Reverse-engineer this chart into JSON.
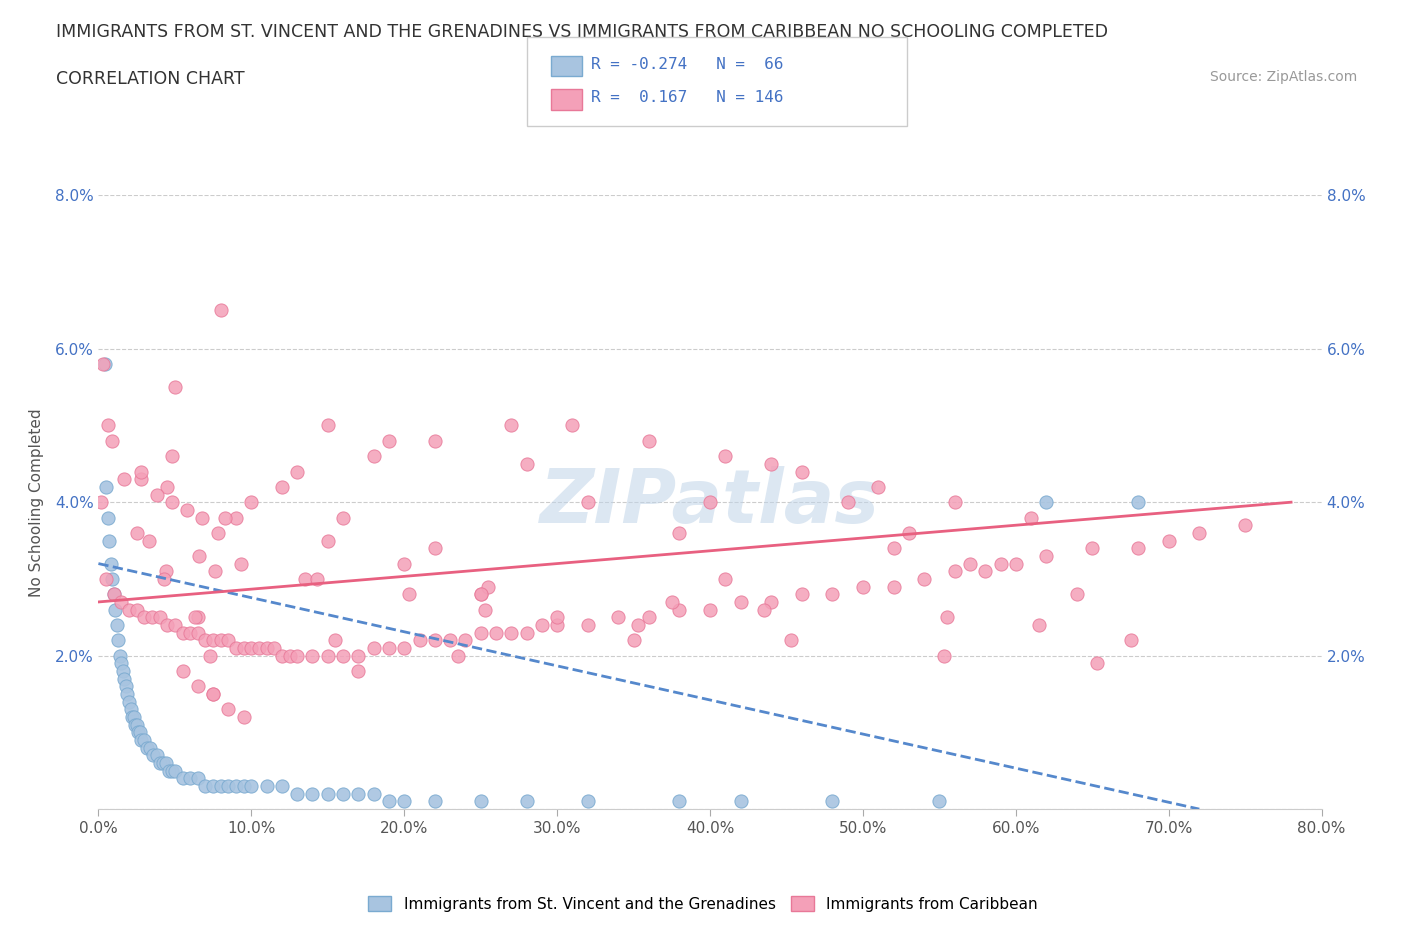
{
  "title_line1": "IMMIGRANTS FROM ST. VINCENT AND THE GRENADINES VS IMMIGRANTS FROM CARIBBEAN NO SCHOOLING COMPLETED",
  "title_line2": "CORRELATION CHART",
  "source_text": "Source: ZipAtlas.com",
  "ylabel": "No Schooling Completed",
  "watermark_text": "ZIPatlas",
  "color_blue": "#a8c4e0",
  "color_pink": "#f4a0b8",
  "edge_blue": "#7aaad0",
  "edge_pink": "#e87898",
  "trendline_blue": "#5588cc",
  "trendline_pink": "#e86080",
  "label_color_blue": "#4472c4",
  "xlim": [
    0.0,
    0.8
  ],
  "ylim": [
    0.0,
    0.08
  ],
  "xticks": [
    0.0,
    0.1,
    0.2,
    0.3,
    0.4,
    0.5,
    0.6,
    0.7,
    0.8
  ],
  "yticks": [
    0.0,
    0.02,
    0.04,
    0.06,
    0.08
  ],
  "xtick_labels": [
    "0.0%",
    "10.0%",
    "20.0%",
    "30.0%",
    "40.0%",
    "50.0%",
    "60.0%",
    "70.0%",
    "80.0%"
  ],
  "ytick_labels": [
    "",
    "2.0%",
    "4.0%",
    "6.0%",
    "8.0%"
  ],
  "blue_x": [
    0.004,
    0.005,
    0.006,
    0.007,
    0.008,
    0.009,
    0.01,
    0.011,
    0.012,
    0.013,
    0.014,
    0.015,
    0.016,
    0.017,
    0.018,
    0.019,
    0.02,
    0.021,
    0.022,
    0.023,
    0.024,
    0.025,
    0.026,
    0.027,
    0.028,
    0.03,
    0.032,
    0.034,
    0.036,
    0.038,
    0.04,
    0.042,
    0.044,
    0.046,
    0.048,
    0.05,
    0.055,
    0.06,
    0.065,
    0.07,
    0.075,
    0.08,
    0.085,
    0.09,
    0.095,
    0.1,
    0.11,
    0.12,
    0.13,
    0.14,
    0.15,
    0.16,
    0.17,
    0.18,
    0.19,
    0.2,
    0.22,
    0.25,
    0.28,
    0.32,
    0.38,
    0.42,
    0.48,
    0.55,
    0.62,
    0.68
  ],
  "blue_y": [
    0.058,
    0.042,
    0.038,
    0.035,
    0.032,
    0.03,
    0.028,
    0.026,
    0.024,
    0.022,
    0.02,
    0.019,
    0.018,
    0.017,
    0.016,
    0.015,
    0.014,
    0.013,
    0.012,
    0.012,
    0.011,
    0.011,
    0.01,
    0.01,
    0.009,
    0.009,
    0.008,
    0.008,
    0.007,
    0.007,
    0.006,
    0.006,
    0.006,
    0.005,
    0.005,
    0.005,
    0.004,
    0.004,
    0.004,
    0.003,
    0.003,
    0.003,
    0.003,
    0.003,
    0.003,
    0.003,
    0.003,
    0.003,
    0.002,
    0.002,
    0.002,
    0.002,
    0.002,
    0.002,
    0.001,
    0.001,
    0.001,
    0.001,
    0.001,
    0.001,
    0.001,
    0.001,
    0.001,
    0.001,
    0.04,
    0.04
  ],
  "pink_x": [
    0.005,
    0.01,
    0.015,
    0.02,
    0.025,
    0.03,
    0.035,
    0.04,
    0.045,
    0.05,
    0.055,
    0.06,
    0.065,
    0.07,
    0.075,
    0.08,
    0.085,
    0.09,
    0.095,
    0.1,
    0.105,
    0.11,
    0.115,
    0.12,
    0.125,
    0.13,
    0.14,
    0.15,
    0.16,
    0.17,
    0.18,
    0.19,
    0.2,
    0.21,
    0.22,
    0.23,
    0.24,
    0.25,
    0.26,
    0.27,
    0.28,
    0.29,
    0.3,
    0.32,
    0.34,
    0.36,
    0.38,
    0.4,
    0.42,
    0.44,
    0.46,
    0.48,
    0.5,
    0.52,
    0.54,
    0.56,
    0.58,
    0.6,
    0.62,
    0.65,
    0.68,
    0.7,
    0.72,
    0.75,
    0.05,
    0.1,
    0.15,
    0.2,
    0.25,
    0.3,
    0.35,
    0.4,
    0.045,
    0.09,
    0.13,
    0.18,
    0.22,
    0.27,
    0.31,
    0.36,
    0.41,
    0.46,
    0.51,
    0.56,
    0.61,
    0.066,
    0.076,
    0.135,
    0.255,
    0.375,
    0.435,
    0.555,
    0.615,
    0.675,
    0.38,
    0.41,
    0.28,
    0.32,
    0.15,
    0.19,
    0.52,
    0.57,
    0.25,
    0.08,
    0.12,
    0.16,
    0.22,
    0.44,
    0.49,
    0.53,
    0.59,
    0.64,
    0.055,
    0.065,
    0.075,
    0.085,
    0.095,
    0.17,
    0.075,
    0.155,
    0.235,
    0.065,
    0.044,
    0.025,
    0.017,
    0.009,
    0.006,
    0.003,
    0.0015,
    0.033,
    0.043,
    0.063,
    0.073,
    0.083,
    0.093,
    0.143,
    0.203,
    0.253,
    0.353,
    0.453,
    0.553,
    0.653,
    0.028,
    0.038,
    0.048,
    0.058,
    0.068,
    0.078,
    0.028,
    0.048
  ],
  "pink_y": [
    0.03,
    0.028,
    0.027,
    0.026,
    0.026,
    0.025,
    0.025,
    0.025,
    0.024,
    0.024,
    0.023,
    0.023,
    0.023,
    0.022,
    0.022,
    0.022,
    0.022,
    0.021,
    0.021,
    0.021,
    0.021,
    0.021,
    0.021,
    0.02,
    0.02,
    0.02,
    0.02,
    0.02,
    0.02,
    0.02,
    0.021,
    0.021,
    0.021,
    0.022,
    0.022,
    0.022,
    0.022,
    0.023,
    0.023,
    0.023,
    0.023,
    0.024,
    0.024,
    0.024,
    0.025,
    0.025,
    0.026,
    0.026,
    0.027,
    0.027,
    0.028,
    0.028,
    0.029,
    0.029,
    0.03,
    0.031,
    0.031,
    0.032,
    0.033,
    0.034,
    0.034,
    0.035,
    0.036,
    0.037,
    0.055,
    0.04,
    0.035,
    0.032,
    0.028,
    0.025,
    0.022,
    0.04,
    0.042,
    0.038,
    0.044,
    0.046,
    0.048,
    0.05,
    0.05,
    0.048,
    0.046,
    0.044,
    0.042,
    0.04,
    0.038,
    0.033,
    0.031,
    0.03,
    0.029,
    0.027,
    0.026,
    0.025,
    0.024,
    0.022,
    0.036,
    0.03,
    0.045,
    0.04,
    0.05,
    0.048,
    0.034,
    0.032,
    0.028,
    0.065,
    0.042,
    0.038,
    0.034,
    0.045,
    0.04,
    0.036,
    0.032,
    0.028,
    0.018,
    0.016,
    0.015,
    0.013,
    0.012,
    0.018,
    0.015,
    0.022,
    0.02,
    0.025,
    0.031,
    0.036,
    0.043,
    0.048,
    0.05,
    0.058,
    0.04,
    0.035,
    0.03,
    0.025,
    0.02,
    0.038,
    0.032,
    0.03,
    0.028,
    0.026,
    0.024,
    0.022,
    0.02,
    0.019,
    0.043,
    0.041,
    0.04,
    0.039,
    0.038,
    0.036,
    0.044,
    0.046
  ],
  "blue_trend_x": [
    0.0,
    0.72
  ],
  "blue_trend_y": [
    0.032,
    0.0
  ],
  "pink_trend_x": [
    0.0,
    0.78
  ],
  "pink_trend_y": [
    0.027,
    0.04
  ],
  "bg_color": "#ffffff",
  "grid_color": "#cccccc",
  "legend_label_blue": "Immigrants from St. Vincent and the Grenadines",
  "legend_label_pink": "Immigrants from Caribbean"
}
